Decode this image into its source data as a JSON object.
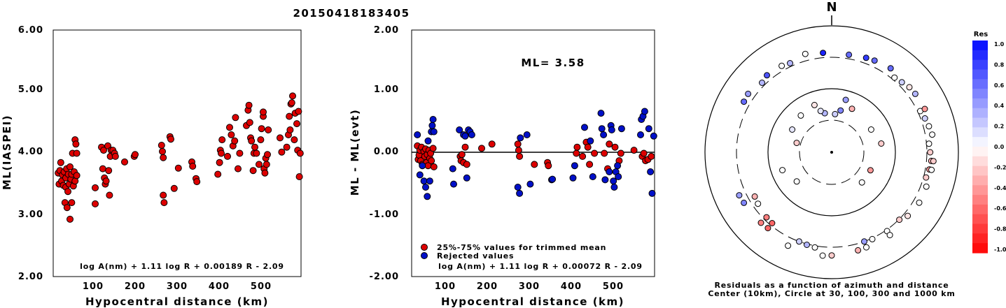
{
  "title": "20150418183405",
  "colors": {
    "member": "#dd0000",
    "rejected": "#0010c8",
    "axis": "#000000"
  },
  "chart_data": [
    {
      "type": "scatter",
      "ylabel": "ML(IASPEI)",
      "xlabel": "Hypocentral distance (km)",
      "xlim": [
        0,
        590
      ],
      "ylim": [
        2.0,
        6.0
      ],
      "xticks": [
        "100",
        "200",
        "300",
        "400",
        "500"
      ],
      "yticks": [
        "2.00",
        "3.00",
        "4.00",
        "5.00",
        "6.00"
      ],
      "formula": "log A(nm) + 1.11 log R + 0.00189 R - 2.09",
      "points": [
        [
          12,
          3.68
        ],
        [
          14,
          3.5
        ],
        [
          16,
          3.72
        ],
        [
          18,
          3.85
        ],
        [
          20,
          3.55
        ],
        [
          22,
          3.65
        ],
        [
          24,
          3.48
        ],
        [
          26,
          3.7
        ],
        [
          28,
          3.2
        ],
        [
          30,
          3.6
        ],
        [
          30,
          3.45
        ],
        [
          32,
          3.75
        ],
        [
          33,
          3.12
        ],
        [
          35,
          3.38
        ],
        [
          36,
          3.66
        ],
        [
          38,
          3.5
        ],
        [
          40,
          3.78
        ],
        [
          40,
          2.93
        ],
        [
          42,
          3.58
        ],
        [
          44,
          3.2
        ],
        [
          44,
          3.66
        ],
        [
          46,
          4.0
        ],
        [
          48,
          3.47
        ],
        [
          50,
          3.7
        ],
        [
          52,
          3.55
        ],
        [
          52,
          4.22
        ],
        [
          54,
          4.15
        ],
        [
          56,
          3.64
        ],
        [
          56,
          4.0
        ],
        [
          100,
          3.44
        ],
        [
          100,
          3.18
        ],
        [
          115,
          4.1
        ],
        [
          118,
          3.75
        ],
        [
          120,
          4.05
        ],
        [
          122,
          3.6
        ],
        [
          124,
          3.5
        ],
        [
          126,
          3.55
        ],
        [
          130,
          4.12
        ],
        [
          132,
          3.72
        ],
        [
          134,
          3.32
        ],
        [
          136,
          3.95
        ],
        [
          138,
          4.05
        ],
        [
          142,
          4.05
        ],
        [
          146,
          4.0
        ],
        [
          148,
          3.95
        ],
        [
          170,
          3.86
        ],
        [
          193,
          3.95
        ],
        [
          195,
          3.98
        ],
        [
          258,
          4.13
        ],
        [
          260,
          4.03
        ],
        [
          262,
          3.93
        ],
        [
          262,
          3.32
        ],
        [
          264,
          3.2
        ],
        [
          278,
          4.27
        ],
        [
          280,
          4.23
        ],
        [
          288,
          3.43
        ],
        [
          298,
          3.76
        ],
        [
          330,
          3.86
        ],
        [
          332,
          3.79
        ],
        [
          340,
          3.59
        ],
        [
          342,
          3.54
        ],
        [
          392,
          3.66
        ],
        [
          396,
          3.85
        ],
        [
          398,
          4.05
        ],
        [
          400,
          4.0
        ],
        [
          402,
          4.22
        ],
        [
          415,
          3.95
        ],
        [
          420,
          4.42
        ],
        [
          424,
          4.3
        ],
        [
          428,
          4.12
        ],
        [
          432,
          4.2
        ],
        [
          434,
          4.58
        ],
        [
          440,
          3.75
        ],
        [
          444,
          4.0
        ],
        [
          460,
          4.45
        ],
        [
          464,
          4.7
        ],
        [
          466,
          4.78
        ],
        [
          468,
          4.5
        ],
        [
          470,
          4.25
        ],
        [
          472,
          4.2
        ],
        [
          476,
          3.72
        ],
        [
          478,
          4.0
        ],
        [
          480,
          4.1
        ],
        [
          484,
          4.0
        ],
        [
          490,
          3.82
        ],
        [
          494,
          4.22
        ],
        [
          496,
          4.4
        ],
        [
          500,
          4.6
        ],
        [
          500,
          4.67
        ],
        [
          502,
          3.75
        ],
        [
          504,
          3.68
        ],
        [
          506,
          3.92
        ],
        [
          508,
          3.82
        ],
        [
          510,
          3.98
        ],
        [
          512,
          4.38
        ],
        [
          540,
          4.25
        ],
        [
          544,
          4.02
        ],
        [
          556,
          4.1
        ],
        [
          560,
          4.3
        ],
        [
          562,
          4.6
        ],
        [
          564,
          4.38
        ],
        [
          566,
          4.8
        ],
        [
          568,
          4.82
        ],
        [
          570,
          4.93
        ],
        [
          574,
          4.22
        ],
        [
          576,
          4.65
        ],
        [
          580,
          4.48
        ],
        [
          582,
          4.05
        ],
        [
          584,
          4.68
        ],
        [
          586,
          3.62
        ],
        [
          588,
          4.0
        ]
      ]
    },
    {
      "type": "scatter",
      "ylabel": "ML - ML(evt)",
      "xlabel": "Hypocentral distance (km)",
      "xlim": [
        0,
        590
      ],
      "ylim": [
        -2.0,
        2.0
      ],
      "xticks": [
        "100",
        "200",
        "300",
        "400",
        "500"
      ],
      "yticks": [
        "-2.00",
        "-1.00",
        "0.00",
        "1.00",
        "2.00"
      ],
      "ml_label": "ML= 3.58",
      "reference_line": 0.0,
      "legend": [
        "25%-75% values for trimmed mean",
        "Rejected values"
      ],
      "formula": "log A(nm) + 1.11 log R + 0.00072 R - 2.09",
      "series": [
        {
          "name": "25%-75% values for trimmed mean",
          "points": [
            [
              14,
              0.12
            ],
            [
              16,
              -0.1
            ],
            [
              18,
              -0.03
            ],
            [
              20,
              0.05
            ],
            [
              22,
              -0.12
            ],
            [
              24,
              0.1
            ],
            [
              26,
              -0.18
            ],
            [
              30,
              0.03
            ],
            [
              32,
              -0.05
            ],
            [
              34,
              0.07
            ],
            [
              36,
              -0.15
            ],
            [
              38,
              -0.02
            ],
            [
              40,
              -0.2
            ],
            [
              42,
              0.05
            ],
            [
              44,
              -0.08
            ],
            [
              46,
              0.0
            ],
            [
              48,
              -0.12
            ],
            [
              52,
              0.08
            ],
            [
              54,
              -0.22
            ],
            [
              118,
              -0.05
            ],
            [
              120,
              -0.12
            ],
            [
              122,
              -0.02
            ],
            [
              126,
              -0.15
            ],
            [
              130,
              0.1
            ],
            [
              134,
              -0.18
            ],
            [
              170,
              0.08
            ],
            [
              195,
              0.15
            ],
            [
              258,
              0.15
            ],
            [
              260,
              0.05
            ],
            [
              262,
              -0.05
            ],
            [
              298,
              -0.18
            ],
            [
              330,
              -0.15
            ],
            [
              332,
              -0.2
            ],
            [
              400,
              0.0
            ],
            [
              402,
              0.1
            ],
            [
              415,
              -0.05
            ],
            [
              424,
              0.18
            ],
            [
              428,
              0.1
            ],
            [
              432,
              -0.18
            ],
            [
              444,
              0.0
            ],
            [
              468,
              0.0
            ],
            [
              476,
              -0.25
            ],
            [
              480,
              0.15
            ],
            [
              494,
              0.1
            ],
            [
              504,
              -0.12
            ],
            [
              508,
              0.0
            ],
            [
              540,
              0.05
            ],
            [
              560,
              -0.05
            ],
            [
              564,
              0.0
            ],
            [
              568,
              -0.12
            ],
            [
              574,
              -0.1
            ],
            [
              582,
              -0.05
            ]
          ]
        },
        {
          "name": "Rejected values",
          "points": [
            [
              14,
              0.3
            ],
            [
              20,
              -0.35
            ],
            [
              26,
              -0.2
            ],
            [
              30,
              -0.45
            ],
            [
              34,
              -0.55
            ],
            [
              38,
              -0.7
            ],
            [
              40,
              0.2
            ],
            [
              44,
              -0.45
            ],
            [
              48,
              0.35
            ],
            [
              50,
              0.45
            ],
            [
              52,
              0.55
            ],
            [
              54,
              0.35
            ],
            [
              100,
              -0.25
            ],
            [
              102,
              -0.5
            ],
            [
              116,
              0.38
            ],
            [
              126,
              0.3
            ],
            [
              130,
              0.28
            ],
            [
              134,
              -0.4
            ],
            [
              138,
              0.38
            ],
            [
              142,
              0.35
            ],
            [
              146,
              0.3
            ],
            [
              258,
              -0.55
            ],
            [
              262,
              -0.65
            ],
            [
              264,
              0.25
            ],
            [
              280,
              0.3
            ],
            [
              288,
              -0.5
            ],
            [
              340,
              -0.43
            ],
            [
              342,
              -0.42
            ],
            [
              392,
              -0.4
            ],
            [
              396,
              -0.2
            ],
            [
              420,
              0.42
            ],
            [
              434,
              0.2
            ],
            [
              440,
              -0.38
            ],
            [
              460,
              0.65
            ],
            [
              462,
              0.4
            ],
            [
              466,
              0.3
            ],
            [
              470,
              -0.43
            ],
            [
              480,
              -0.3
            ],
            [
              484,
              0.45
            ],
            [
              486,
              0.38
            ],
            [
              490,
              -0.45
            ],
            [
              492,
              -0.55
            ],
            [
              496,
              -0.3
            ],
            [
              500,
              -0.2
            ],
            [
              502,
              -0.38
            ],
            [
              510,
              0.4
            ],
            [
              556,
              0.3
            ],
            [
              558,
              0.55
            ],
            [
              562,
              0.6
            ],
            [
              566,
              0.68
            ],
            [
              576,
              0.4
            ],
            [
              580,
              -0.3
            ],
            [
              584,
              -0.65
            ],
            [
              588,
              0.28
            ]
          ]
        }
      ]
    },
    {
      "type": "polar-scatter",
      "north_label": "N",
      "caption_line1": "Residuals as a function of azimuth and distance",
      "caption_line2": "Center (10km), Circle at 30, 100, 300 and 1000 km",
      "colorbar_title": "Res",
      "colorbar_ticks": [
        "1.0",
        "0.8",
        "0.6",
        "0.4",
        "0.2",
        "0.0",
        "-0.2",
        "-0.4",
        "-0.6",
        "-0.8",
        "-1.0"
      ],
      "points": [
        [
          350,
          40,
          0.3
        ],
        [
          345,
          45,
          0.1
        ],
        [
          340,
          60,
          -0.1
        ],
        [
          12,
          45,
          0.5
        ],
        [
          5,
          38,
          0.2
        ],
        [
          25,
          55,
          -0.3
        ],
        [
          15,
          70,
          0.4
        ],
        [
          320,
          55,
          0.0
        ],
        [
          300,
          50,
          0.1
        ],
        [
          285,
          35,
          -0.2
        ],
        [
          250,
          65,
          0.0
        ],
        [
          230,
          50,
          0.0
        ],
        [
          135,
          45,
          0.0
        ],
        [
          80,
          60,
          -0.2
        ],
        [
          60,
          50,
          0.0
        ],
        [
          115,
          45,
          -0.4
        ],
        [
          240,
          240,
          -0.3
        ],
        [
          235,
          250,
          0.0
        ],
        [
          225,
          270,
          -0.5
        ],
        [
          220,
          275,
          -0.6
        ],
        [
          200,
          300,
          0.2
        ],
        [
          195,
          310,
          0.3
        ],
        [
          190,
          320,
          0.0
        ],
        [
          160,
          300,
          0.4
        ],
        [
          155,
          310,
          0.0
        ],
        [
          145,
          315,
          0.0
        ],
        [
          135,
          305,
          -0.2
        ],
        [
          160,
          380,
          0.0
        ],
        [
          165,
          385,
          -0.3
        ],
        [
          355,
          360,
          0.9
        ],
        [
          10,
          350,
          0.6
        ],
        [
          20,
          370,
          0.8
        ],
        [
          25,
          380,
          0.6
        ],
        [
          40,
          330,
          0.0
        ],
        [
          45,
          350,
          0.2
        ],
        [
          50,
          380,
          -0.1
        ],
        [
          55,
          390,
          0.3
        ],
        [
          65,
          330,
          0.0
        ],
        [
          70,
          350,
          0.2
        ],
        [
          75,
          370,
          0.0
        ],
        [
          85,
          330,
          0.0
        ],
        [
          90,
          340,
          -0.2
        ],
        [
          95,
          360,
          -0.3
        ],
        [
          100,
          350,
          -0.4
        ],
        [
          105,
          330,
          -0.2
        ],
        [
          100,
          380,
          0.0
        ],
        [
          110,
          370,
          0.0
        ],
        [
          120,
          375,
          0.0
        ],
        [
          130,
          350,
          -0.1
        ],
        [
          145,
          380,
          0.0
        ],
        [
          180,
          410,
          -0.2
        ],
        [
          185,
          420,
          0.0
        ],
        [
          205,
          410,
          0.0
        ],
        [
          220,
          350,
          -0.6
        ],
        [
          225,
          360,
          -0.5
        ],
        [
          240,
          380,
          0.5
        ],
        [
          245,
          390,
          0.4
        ],
        [
          300,
          380,
          0.6
        ],
        [
          305,
          390,
          0.4
        ],
        [
          315,
          340,
          0.3
        ],
        [
          320,
          370,
          0.7
        ],
        [
          330,
          360,
          0.0
        ],
        [
          335,
          340,
          0.3
        ],
        [
          345,
          390,
          0.0
        ],
        [
          35,
          400,
          0.6
        ],
        [
          65,
          400,
          -0.4
        ],
        [
          80,
          390,
          0.0
        ],
        [
          95,
          390,
          -0.2
        ]
      ]
    }
  ]
}
